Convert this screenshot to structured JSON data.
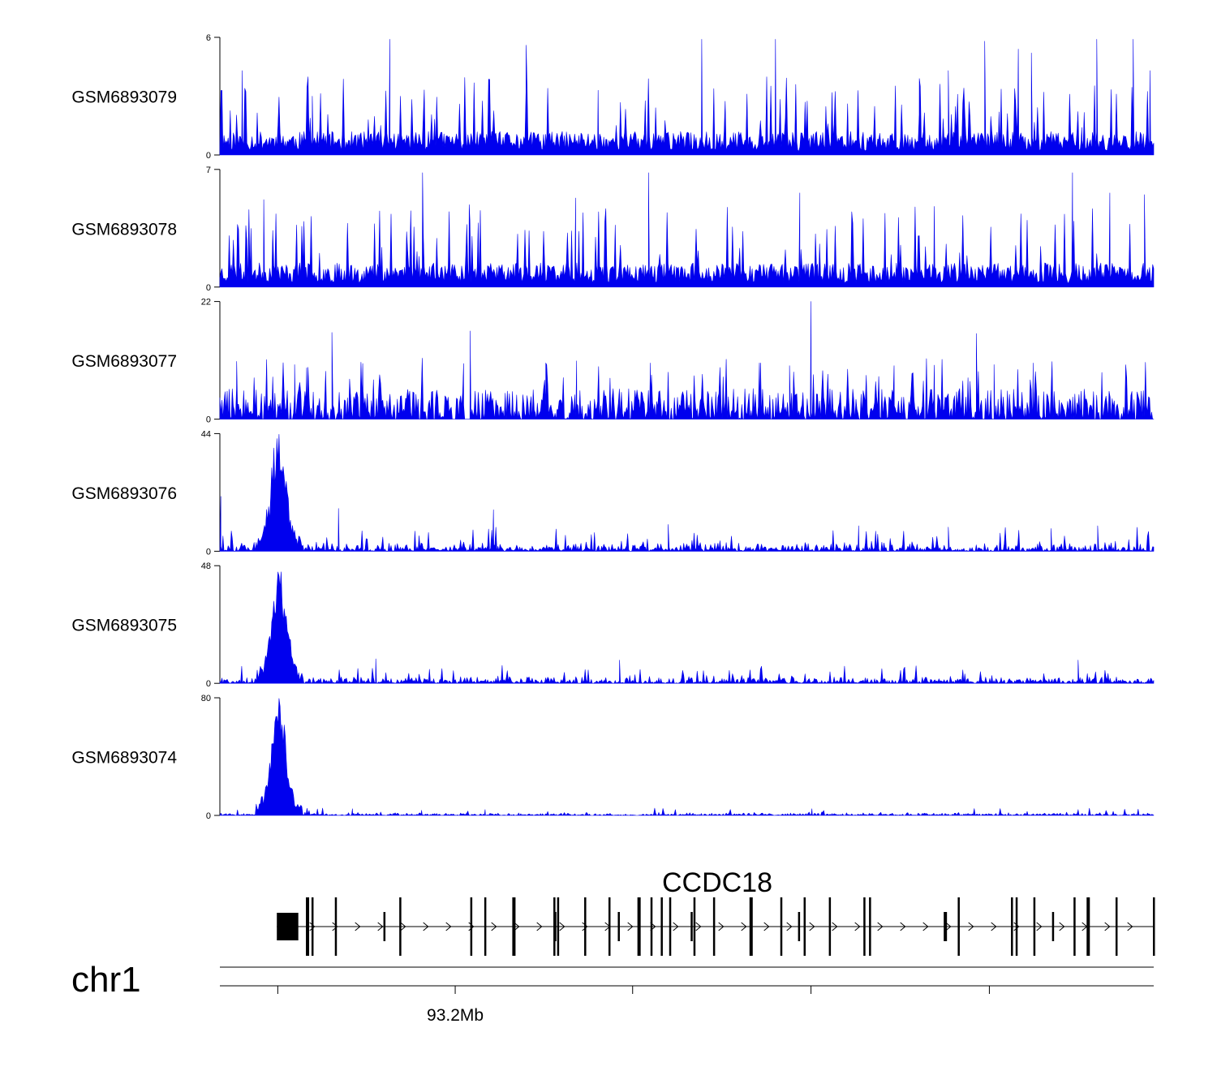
{
  "chart_data": {
    "type": "area",
    "tracks": [
      {
        "name": "GSM6893079",
        "ymax": 6,
        "ymin": 0,
        "color": "#0000ee",
        "profile": "noise",
        "seed": 11,
        "base": 1.0,
        "spike_rate": 0.1,
        "peak_points": [
          [
            92.3,
            1.4
          ],
          [
            2.4,
            4.3
          ],
          [
            9.9,
            3.0
          ],
          [
            18.2,
            5.9
          ],
          [
            32.8,
            5.6
          ],
          [
            40.5,
            3.3
          ],
          [
            51.6,
            5.9
          ],
          [
            59.5,
            5.9
          ],
          [
            74.9,
            3.9
          ],
          [
            78.0,
            4.3
          ],
          [
            81.9,
            5.8
          ],
          [
            85.5,
            5.4
          ],
          [
            86.9,
            5.2
          ],
          [
            93.9,
            5.9
          ],
          [
            97.8,
            5.9
          ],
          [
            99.6,
            4.3
          ]
        ]
      },
      {
        "name": "GSM6893078",
        "ymax": 7,
        "ymin": 0,
        "color": "#0000ee",
        "profile": "noise",
        "seed": 23,
        "base": 1.2,
        "spike_rate": 0.1,
        "peak_points": [
          [
            4.7,
            5.2
          ],
          [
            21.7,
            6.8
          ],
          [
            26.7,
            4.9
          ],
          [
            38.1,
            5.3
          ],
          [
            45.9,
            6.8
          ],
          [
            62.1,
            5.6
          ],
          [
            76.5,
            4.8
          ],
          [
            91.3,
            6.8
          ],
          [
            95.3,
            5.6
          ],
          [
            99.0,
            5.5
          ]
        ]
      },
      {
        "name": "GSM6893077",
        "ymax": 22,
        "ymin": 0,
        "color": "#0000ee",
        "profile": "sparse",
        "seed": 37,
        "base": 5.2,
        "spike_rate": 0.06,
        "peak_points": [
          [
            1.8,
            10.8
          ],
          [
            8.0,
            10.2
          ],
          [
            9.3,
            9.6
          ],
          [
            12.0,
            16.2
          ],
          [
            15.3,
            10.4
          ],
          [
            26.1,
            10.4
          ],
          [
            26.8,
            11.9
          ],
          [
            26.8,
            16.5
          ],
          [
            34.9,
            10.5
          ],
          [
            38.2,
            10.9
          ],
          [
            46.1,
            10.5
          ],
          [
            57.9,
            10.5
          ],
          [
            61.0,
            10.0
          ],
          [
            63.3,
            22.2
          ],
          [
            72.2,
            10.0
          ],
          [
            76.5,
            10.1
          ],
          [
            82.9,
            10.2
          ],
          [
            81.0,
            16.0
          ],
          [
            87.1,
            10.5
          ]
        ]
      },
      {
        "name": "GSM6893076",
        "ymax": 44,
        "ymin": 0,
        "color": "#0000ee",
        "profile": "peaked",
        "seed": 53,
        "base": 1.8,
        "spike_rate": 0.05,
        "peak_center": 6.3,
        "peak_height": 44,
        "peak_points": [
          [
            0.1,
            20.5
          ],
          [
            12.7,
            16.0
          ],
          [
            29.3,
            15.5
          ],
          [
            48.0,
            10.0
          ],
          [
            68.4,
            9.5
          ],
          [
            78.0,
            9.0
          ],
          [
            89.0,
            8.5
          ],
          [
            94.0,
            9.5
          ]
        ]
      },
      {
        "name": "GSM6893075",
        "ymax": 48,
        "ymin": 0,
        "color": "#0000ee",
        "profile": "peaked",
        "seed": 71,
        "base": 1.5,
        "spike_rate": 0.04,
        "peak_center": 6.4,
        "peak_height": 48,
        "peak_points": [
          [
            16.7,
            10.0
          ],
          [
            42.8,
            9.5
          ],
          [
            91.9,
            9.5
          ]
        ]
      },
      {
        "name": "GSM6893074",
        "ymax": 80,
        "ymin": 0,
        "color": "#0000ee",
        "profile": "peaked",
        "seed": 89,
        "base": 1.0,
        "spike_rate": 0.03,
        "peak_center": 6.3,
        "peak_height": 79,
        "peak_points": [
          [
            14.2,
            4.5
          ],
          [
            21.6,
            3.5
          ],
          [
            28.4,
            4.0
          ],
          [
            63.4,
            4.5
          ],
          [
            91.9,
            4.0
          ]
        ]
      }
    ],
    "gene": {
      "name": "CCDC18",
      "strand": "+",
      "utr_block": [
        6.1,
        8.4
      ],
      "exons": [
        9.3,
        9.9,
        12.4,
        17.6,
        19.3,
        26.9,
        28.4,
        31.4,
        35.9,
        35.8,
        36.2,
        39.1,
        41.7,
        42.7,
        44.8,
        46.2,
        47.3,
        48.2,
        50.5,
        50.8,
        52.9,
        56.8,
        60.1,
        62.0,
        62.6,
        65.3,
        69.0,
        69.6,
        77.6,
        79.1,
        84.8,
        85.3,
        87.2,
        89.2,
        91.5,
        92.9,
        96.0,
        100
      ]
    },
    "axis": {
      "chromosome": "chr1",
      "tick_label": "93.2Mb",
      "tick_fractions": [
        6.2,
        25.2,
        44.2,
        63.3,
        82.4
      ],
      "labeled_tick_index": 1
    }
  }
}
